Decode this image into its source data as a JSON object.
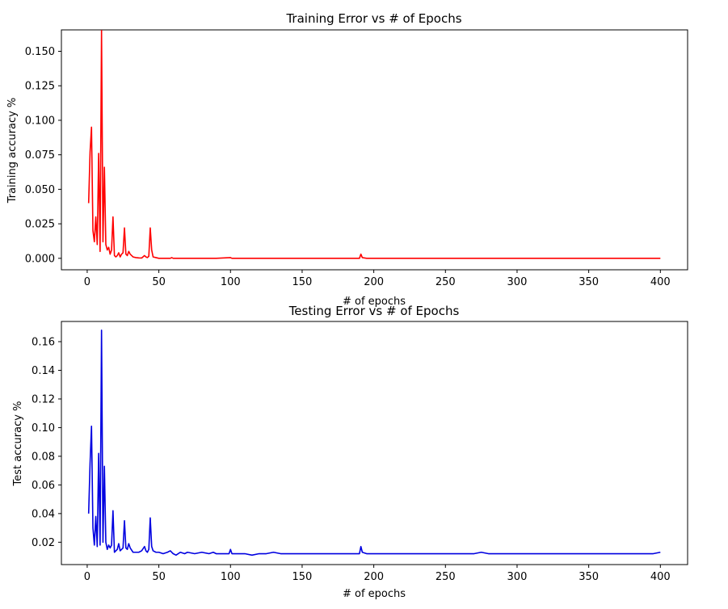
{
  "chart_data": [
    {
      "type": "line",
      "title": "Training Error vs # of Epochs",
      "xlabel": "# of epochs",
      "ylabel": "Training accuracy %",
      "xlim": [
        -18,
        419
      ],
      "ylim": [
        -0.0083,
        0.1655
      ],
      "xticks": [
        0,
        50,
        100,
        150,
        200,
        250,
        300,
        350,
        400
      ],
      "yticks": [
        0.0,
        0.025,
        0.05,
        0.075,
        0.1,
        0.125,
        0.15
      ],
      "ytick_labels": [
        "0.000",
        "0.025",
        "0.050",
        "0.075",
        "0.100",
        "0.125",
        "0.150"
      ],
      "grid": false,
      "series": [
        {
          "color": "#ff0000",
          "x": [
            1,
            2,
            3,
            4,
            5,
            6,
            7,
            8,
            9,
            10,
            11,
            12,
            13,
            14,
            15,
            16,
            17,
            18,
            19,
            20,
            21,
            22,
            23,
            24,
            25,
            26,
            27,
            28,
            29,
            30,
            32,
            34,
            36,
            38,
            40,
            41,
            42,
            43,
            44,
            45,
            46,
            48,
            50,
            55,
            58,
            59,
            60,
            65,
            70,
            80,
            90,
            100,
            101,
            110,
            120,
            150,
            180,
            190,
            191,
            192,
            195,
            200,
            250,
            300,
            350,
            400
          ],
          "y": [
            0.04,
            0.077,
            0.095,
            0.02,
            0.012,
            0.03,
            0.01,
            0.076,
            0.005,
            0.165,
            0.012,
            0.066,
            0.01,
            0.006,
            0.008,
            0.003,
            0.006,
            0.03,
            0.002,
            0.001,
            0.002,
            0.004,
            0.001,
            0.003,
            0.004,
            0.022,
            0.003,
            0.002,
            0.005,
            0.003,
            0.001,
            0.0005,
            0.0003,
            0.0002,
            0.002,
            0.001,
            0.0005,
            0.0015,
            0.022,
            0.006,
            0.001,
            0.0005,
            0.0,
            0.0,
            0.0,
            0.0005,
            0.0,
            0.0,
            0.0,
            0.0,
            0.0,
            0.0005,
            0.0,
            0.0,
            0.0,
            0.0,
            0.0,
            0.0,
            0.003,
            0.0005,
            0.0,
            0.0,
            0.0,
            0.0,
            0.0,
            0.0
          ]
        }
      ]
    },
    {
      "type": "line",
      "title": "Testing Error vs # of Epochs",
      "xlabel": "# of epochs",
      "ylabel": "Test accuracy %",
      "xlim": [
        -18,
        419
      ],
      "ylim": [
        0.0044,
        0.1741
      ],
      "xticks": [
        0,
        50,
        100,
        150,
        200,
        250,
        300,
        350,
        400
      ],
      "yticks": [
        0.02,
        0.04,
        0.06,
        0.08,
        0.1,
        0.12,
        0.14,
        0.16
      ],
      "ytick_labels": [
        "0.02",
        "0.04",
        "0.06",
        "0.08",
        "0.10",
        "0.12",
        "0.14",
        "0.16"
      ],
      "grid": false,
      "series": [
        {
          "color": "#0000e0",
          "x": [
            1,
            2,
            3,
            4,
            5,
            6,
            7,
            8,
            9,
            10,
            11,
            12,
            13,
            14,
            15,
            16,
            17,
            18,
            19,
            20,
            21,
            22,
            23,
            24,
            25,
            26,
            27,
            28,
            29,
            30,
            32,
            34,
            36,
            38,
            40,
            41,
            42,
            43,
            44,
            45,
            46,
            48,
            50,
            53,
            56,
            58,
            60,
            62,
            65,
            68,
            70,
            75,
            80,
            85,
            88,
            90,
            95,
            99,
            100,
            101,
            105,
            110,
            115,
            120,
            125,
            130,
            135,
            140,
            145,
            150,
            160,
            170,
            180,
            190,
            191,
            192,
            195,
            200,
            210,
            220,
            230,
            240,
            250,
            260,
            270,
            275,
            280,
            290,
            300,
            310,
            320,
            330,
            340,
            350,
            360,
            370,
            380,
            390,
            395,
            400
          ],
          "y": [
            0.04,
            0.075,
            0.101,
            0.03,
            0.018,
            0.038,
            0.017,
            0.082,
            0.018,
            0.168,
            0.02,
            0.073,
            0.02,
            0.015,
            0.018,
            0.016,
            0.018,
            0.042,
            0.013,
            0.014,
            0.015,
            0.019,
            0.014,
            0.015,
            0.016,
            0.035,
            0.016,
            0.015,
            0.019,
            0.016,
            0.013,
            0.013,
            0.013,
            0.014,
            0.017,
            0.014,
            0.013,
            0.015,
            0.037,
            0.017,
            0.014,
            0.013,
            0.013,
            0.012,
            0.013,
            0.014,
            0.012,
            0.011,
            0.013,
            0.012,
            0.013,
            0.012,
            0.013,
            0.012,
            0.013,
            0.012,
            0.012,
            0.012,
            0.015,
            0.012,
            0.012,
            0.012,
            0.011,
            0.012,
            0.012,
            0.013,
            0.012,
            0.012,
            0.012,
            0.012,
            0.012,
            0.012,
            0.012,
            0.012,
            0.017,
            0.013,
            0.012,
            0.012,
            0.012,
            0.012,
            0.012,
            0.012,
            0.012,
            0.012,
            0.012,
            0.013,
            0.012,
            0.012,
            0.012,
            0.012,
            0.012,
            0.012,
            0.012,
            0.012,
            0.012,
            0.012,
            0.012,
            0.012,
            0.012,
            0.013
          ]
        }
      ]
    }
  ]
}
